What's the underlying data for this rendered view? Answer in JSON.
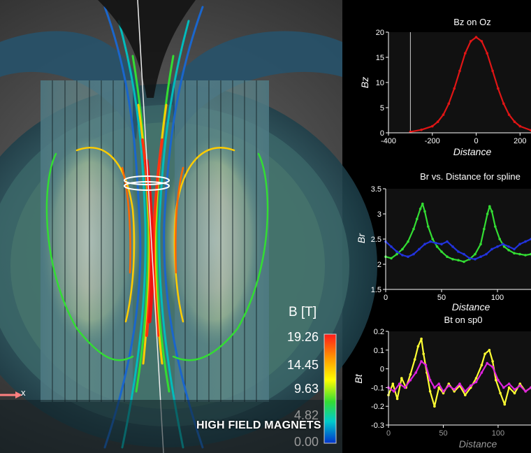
{
  "scene": {
    "axis_indicator_label": "x",
    "caption": "HIGH FIELD MAGNETS"
  },
  "colorbar": {
    "title": "B [T]",
    "labels": [
      "19.26",
      "14.45",
      "9.63",
      "4.82",
      "0.00"
    ],
    "stops": [
      "#ff1a1a",
      "#ff9900",
      "#ffff00",
      "#33dd33",
      "#00cccc",
      "#0033cc"
    ]
  },
  "chart_data": [
    {
      "type": "line",
      "title": "Bz on Oz",
      "xlabel": "Distance",
      "ylabel": "Bz",
      "xlim": [
        -400,
        250
      ],
      "ylim": [
        0,
        20
      ],
      "xticks": [
        -400,
        -200,
        0,
        200
      ],
      "yticks": [
        0,
        5,
        10,
        15,
        20
      ],
      "marker_line_x": -300,
      "series": [
        {
          "color": "#e01515",
          "x": [
            -300,
            -250,
            -200,
            -175,
            -150,
            -125,
            -100,
            -75,
            -50,
            -25,
            0,
            25,
            50,
            75,
            100,
            125,
            150,
            175,
            200,
            250
          ],
          "values": [
            0.2,
            0.6,
            1.3,
            2.2,
            3.6,
            5.8,
            8.8,
            12.3,
            15.8,
            18.2,
            19.0,
            18.2,
            15.8,
            12.3,
            8.8,
            5.8,
            3.6,
            2.2,
            1.3,
            0.5
          ]
        }
      ]
    },
    {
      "type": "line",
      "title": "Br vs. Distance for spline",
      "xlabel": "Distance",
      "ylabel": "Br",
      "xlim": [
        0,
        130
      ],
      "ylim": [
        1.5,
        3.5
      ],
      "xticks": [
        0,
        50,
        100
      ],
      "yticks": [
        1.5,
        2,
        2.5,
        3,
        3.5
      ],
      "yticklabels": [
        "1.5",
        "2",
        "2.5",
        "3",
        "3.5"
      ],
      "series": [
        {
          "color": "#33dd33",
          "x": [
            0,
            5,
            10,
            15,
            20,
            25,
            28,
            31,
            33,
            35,
            38,
            42,
            46,
            50,
            55,
            60,
            65,
            70,
            75,
            80,
            85,
            88,
            91,
            93,
            95,
            98,
            102,
            106,
            110,
            115,
            120,
            125,
            130
          ],
          "values": [
            2.15,
            2.12,
            2.2,
            2.3,
            2.45,
            2.7,
            2.9,
            3.1,
            3.2,
            3.05,
            2.75,
            2.5,
            2.35,
            2.25,
            2.15,
            2.1,
            2.08,
            2.05,
            2.1,
            2.2,
            2.4,
            2.7,
            3.0,
            3.15,
            3.05,
            2.75,
            2.5,
            2.35,
            2.28,
            2.22,
            2.2,
            2.18,
            2.2
          ]
        },
        {
          "color": "#2233dd",
          "x": [
            0,
            5,
            10,
            15,
            20,
            25,
            30,
            35,
            40,
            45,
            50,
            55,
            60,
            65,
            70,
            75,
            80,
            85,
            90,
            95,
            100,
            105,
            110,
            115,
            120,
            125,
            130
          ],
          "values": [
            2.45,
            2.35,
            2.25,
            2.18,
            2.15,
            2.2,
            2.3,
            2.4,
            2.45,
            2.42,
            2.4,
            2.45,
            2.35,
            2.25,
            2.2,
            2.12,
            2.1,
            2.15,
            2.2,
            2.3,
            2.35,
            2.4,
            2.35,
            2.3,
            2.4,
            2.45,
            2.5
          ]
        }
      ]
    },
    {
      "type": "line",
      "title": "Bt on sp0",
      "xlabel": "Distance",
      "ylabel": "Bt",
      "xlim": [
        0,
        130
      ],
      "ylim": [
        -0.3,
        0.2
      ],
      "xticks": [
        0,
        50,
        100
      ],
      "yticks": [
        -0.3,
        -0.2,
        -0.1,
        0,
        0.1,
        0.2
      ],
      "yticklabels": [
        "-0.3",
        "-0.2",
        "-0.1",
        "0",
        "0.1",
        "0.2"
      ],
      "series": [
        {
          "color": "#ffff33",
          "x": [
            0,
            4,
            8,
            12,
            16,
            20,
            24,
            27,
            30,
            32,
            35,
            38,
            42,
            46,
            50,
            55,
            60,
            65,
            70,
            75,
            80,
            85,
            88,
            92,
            95,
            98,
            102,
            106,
            110,
            115,
            120,
            125,
            130
          ],
          "values": [
            -0.14,
            -0.08,
            -0.16,
            -0.05,
            -0.1,
            -0.03,
            0.05,
            0.12,
            0.16,
            0.08,
            -0.02,
            -0.12,
            -0.2,
            -0.1,
            -0.13,
            -0.08,
            -0.12,
            -0.09,
            -0.14,
            -0.1,
            -0.05,
            0.02,
            0.08,
            0.1,
            0.04,
            -0.06,
            -0.13,
            -0.19,
            -0.1,
            -0.13,
            -0.08,
            -0.12,
            -0.1
          ]
        },
        {
          "color": "#dd22dd",
          "x": [
            0,
            5,
            10,
            15,
            20,
            25,
            30,
            34,
            38,
            42,
            46,
            50,
            55,
            60,
            65,
            70,
            75,
            80,
            85,
            90,
            95,
            100,
            105,
            110,
            115,
            120,
            125,
            130
          ],
          "values": [
            -0.1,
            -0.12,
            -0.08,
            -0.1,
            -0.06,
            -0.02,
            0.04,
            0.02,
            -0.06,
            -0.1,
            -0.08,
            -0.12,
            -0.09,
            -0.11,
            -0.08,
            -0.12,
            -0.09,
            -0.07,
            -0.02,
            0.03,
            0.01,
            -0.06,
            -0.1,
            -0.08,
            -0.11,
            -0.09,
            -0.12,
            -0.1
          ]
        }
      ]
    }
  ]
}
